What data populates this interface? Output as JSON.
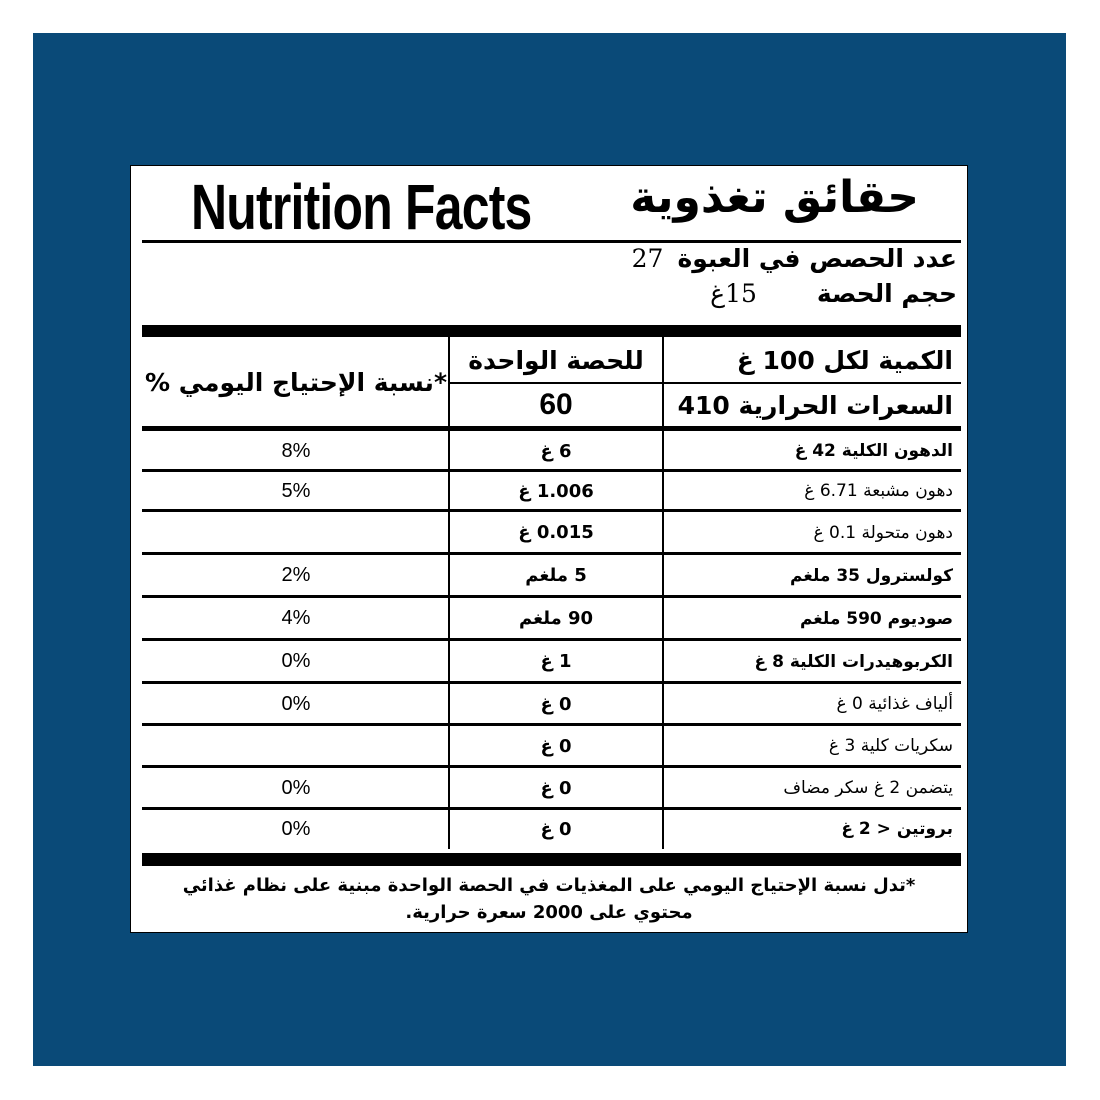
{
  "colors": {
    "background": "#0a4a78",
    "label": "#ffffff",
    "ink": "#000000"
  },
  "title_en": "Nutrition Facts",
  "title_ar": "حقائق تغذوية",
  "servings_per_container": {
    "label": "عدد الحصص في العبوة",
    "value": "27"
  },
  "serving_size": {
    "label": "حجم الحصة",
    "value": "15غ"
  },
  "header": {
    "per100_label": "الكمية لكل 100 غ",
    "per_serving_label": "للحصة الواحدة",
    "dv_label": "*نسبة الإحتياج اليومي %",
    "calories_label": "السعرات الحرارية 410",
    "calories_serving": "60"
  },
  "rows": [
    {
      "label": "الدهون الكلية 42 غ",
      "serving": "6 غ",
      "dv": "8%",
      "bold": true
    },
    {
      "label": "دهون مشبعة 6.71 غ",
      "serving": "1.006 غ",
      "dv": "5%",
      "bold": false
    },
    {
      "label": "دهون متحولة 0.1 غ",
      "serving": "0.015 غ",
      "dv": "",
      "bold": false
    },
    {
      "label": "كولسترول 35 ملغم",
      "serving": "5 ملغم",
      "dv": "2%",
      "bold": true
    },
    {
      "label": "صوديوم 590 ملغم",
      "serving": "90 ملغم",
      "dv": "4%",
      "bold": true
    },
    {
      "label": "الكربوهيدرات الكلية 8 غ",
      "serving": "1 غ",
      "dv": "0%",
      "bold": true
    },
    {
      "label": "ألياف غذائية 0 غ",
      "serving": "0 غ",
      "dv": "0%",
      "bold": false
    },
    {
      "label": "سكريات كلية 3 غ",
      "serving": "0 غ",
      "dv": "",
      "bold": false
    },
    {
      "label": "يتضمن 2 غ سكر مضاف",
      "serving": "0 غ",
      "dv": "0%",
      "bold": false
    },
    {
      "label": "بروتين < 2 غ",
      "serving": "0 غ",
      "dv": "0%",
      "bold": true
    }
  ],
  "footnote_line1": "*تدل نسبة الإحتياج اليومي على المغذيات في الحصة الواحدة مبنية على نظام غذائي",
  "footnote_line2": "محتوي على 2000 سعرة حرارية."
}
